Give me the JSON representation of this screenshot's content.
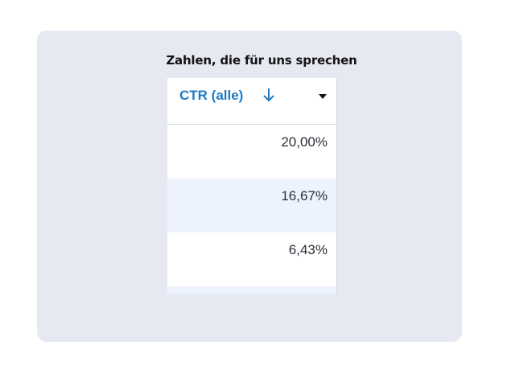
{
  "title": "Zahlen, die für uns sprechen",
  "table": {
    "column_header": "CTR (alle)",
    "sort_direction": "descending",
    "rows": [
      "20,00%",
      "16,67%",
      "6,43%",
      ""
    ]
  },
  "colors": {
    "card_background": "#e7e9f2",
    "header_text": "#1e7bc6",
    "row_stripe": "#edf3fc"
  },
  "icons": {
    "sort": "arrow-down-icon",
    "menu": "caret-down-icon"
  }
}
